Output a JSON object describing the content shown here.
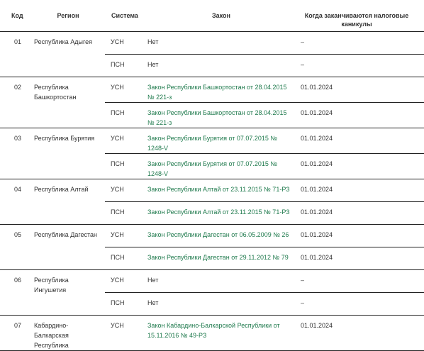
{
  "headers": {
    "code": "Код",
    "region": "Регион",
    "system": "Система",
    "law": "Закон",
    "holiday": "Когда заканчиваются налоговые каникулы"
  },
  "regions": [
    {
      "code": "01",
      "name": "Республика Адыгея",
      "rows": [
        {
          "system": "УСН",
          "law": "Нет",
          "law_is_link": false,
          "end": "–"
        },
        {
          "system": "ПСН",
          "law": "Нет",
          "law_is_link": false,
          "end": "–"
        }
      ]
    },
    {
      "code": "02",
      "name": "Республика Башкортостан",
      "rows": [
        {
          "system": "УСН",
          "law": "Закон Республики Башкортостан от 28.04.2015 № 221-з",
          "law_is_link": true,
          "end": "01.01.2024"
        },
        {
          "system": "ПСН",
          "law": "Закон Республики Башкортостан от 28.04.2015 № 221-з",
          "law_is_link": true,
          "end": "01.01.2024"
        }
      ]
    },
    {
      "code": "03",
      "name": "Республика Бурятия",
      "rows": [
        {
          "system": "УСН",
          "law": "Закон Республики Бурятия от 07.07.2015 № 1248-V",
          "law_is_link": true,
          "end": "01.01.2024"
        },
        {
          "system": "ПСН",
          "law": "Закон Республики Бурятия от 07.07.2015 № 1248-V",
          "law_is_link": true,
          "end": "01.01.2024"
        }
      ]
    },
    {
      "code": "04",
      "name": "Республика Алтай",
      "rows": [
        {
          "system": "УСН",
          "law": "Закон Республики Алтай от 23.11.2015 № 71-РЗ",
          "law_is_link": true,
          "end": "01.01.2024"
        },
        {
          "system": "ПСН",
          "law": "Закон Республики Алтай от 23.11.2015 № 71-РЗ",
          "law_is_link": true,
          "end": "01.01.2024"
        }
      ]
    },
    {
      "code": "05",
      "name": "Республика Дагестан",
      "rows": [
        {
          "system": "УСН",
          "law": "Закон Республики Дагестан от 06.05.2009 № 26",
          "law_is_link": true,
          "end": "01.01.2024"
        },
        {
          "system": "ПСН",
          "law": "Закон Республики Дагестан от 29.11.2012 № 79",
          "law_is_link": true,
          "end": "01.01.2024"
        }
      ]
    },
    {
      "code": "06",
      "name": "Республика Ингушетия",
      "rows": [
        {
          "system": "УСН",
          "law": "Нет",
          "law_is_link": false,
          "end": "–"
        },
        {
          "system": "ПСН",
          "law": "Нет",
          "law_is_link": false,
          "end": "–"
        }
      ]
    },
    {
      "code": "07",
      "name": "Кабардино-Балкарская Республика",
      "rows": [
        {
          "system": "УСН",
          "law": "Закон Кабардино-Балкарской Республики от 15.11.2016 № 49-РЗ",
          "law_is_link": true,
          "end": "01.01.2024"
        }
      ]
    }
  ]
}
